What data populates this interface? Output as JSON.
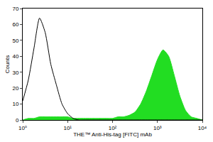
{
  "chart_data": {
    "type": "line",
    "x_label": "THE™ Anti-His-tag [FITC] mAb",
    "y_label": "Counts",
    "x": [
      1,
      1.33,
      1.78,
      2.37,
      3.16,
      4.22,
      5.62,
      7.5,
      10,
      13.3,
      17.8,
      23.7,
      31.6,
      42.2,
      56.2,
      75,
      100,
      133,
      178,
      237,
      316,
      422,
      562,
      750,
      1000,
      1330,
      1780,
      2370,
      3160,
      4220,
      5620,
      7500,
      10000
    ],
    "series": [
      {
        "type": "line",
        "color": "#000000",
        "line_style": "solid",
        "values": [
          12,
          25,
          45,
          64,
          55,
          35,
          22,
          10,
          4,
          1,
          0,
          0,
          0,
          0,
          0,
          0,
          0,
          0,
          0,
          0,
          0,
          0,
          0,
          0,
          0,
          0,
          0,
          0,
          0,
          0,
          0,
          0,
          0
        ]
      },
      {
        "type": "area",
        "color": "#22dd22",
        "line_style": "solid",
        "values": [
          0,
          1,
          1,
          2,
          2,
          2,
          2,
          2,
          2,
          1,
          1,
          1,
          1,
          1,
          1,
          1,
          1,
          2,
          2,
          3,
          5,
          10,
          18,
          28,
          38,
          44,
          40,
          28,
          15,
          6,
          2,
          1,
          0
        ]
      }
    ],
    "log": "x",
    "xlim": [
      1,
      10000
    ],
    "xticks": [
      {
        "value": 1,
        "label": "10⁰"
      },
      {
        "value": 10,
        "label": "10¹"
      },
      {
        "value": 100,
        "label": "10²"
      },
      {
        "value": 1000,
        "label": "10³"
      },
      {
        "value": 10000,
        "label": "10⁴"
      }
    ],
    "ylim": [
      0,
      70
    ],
    "yticks": [
      0,
      10,
      20,
      30,
      40,
      50,
      60,
      70
    ],
    "grid": false
  }
}
